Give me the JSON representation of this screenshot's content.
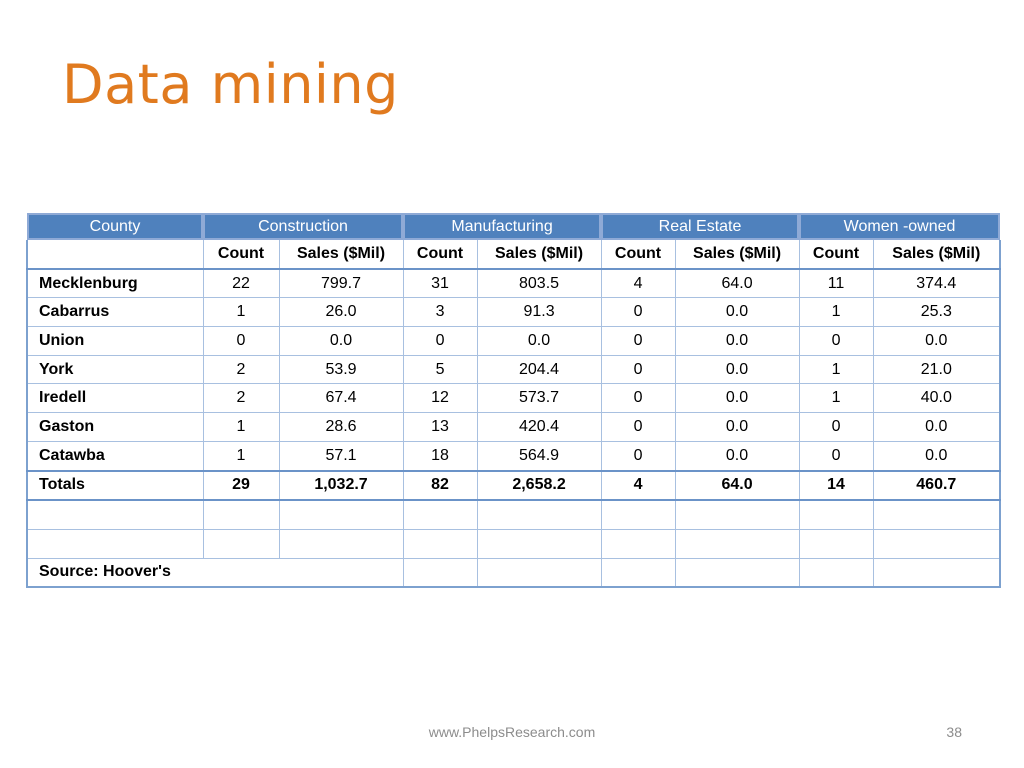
{
  "slide": {
    "title": "Data mining",
    "footer_url": "www.PhelpsResearch.com",
    "page_number": "38"
  },
  "colors": {
    "title": "#e07a1f",
    "header_bg": "#4f81bd",
    "header_text": "#ffffff",
    "grid": "#a8c0e0"
  },
  "table": {
    "group_headers": [
      "County",
      "Construction",
      "Manufacturing",
      "Real Estate",
      "Women -owned"
    ],
    "sub_headers": [
      "",
      "Count",
      "Sales ($Mil)",
      "Count",
      "Sales ($Mil)",
      "Count",
      "Sales ($Mil)",
      "Count",
      "Sales ($Mil)"
    ],
    "rows": [
      [
        "Mecklenburg",
        "22",
        "799.7",
        "31",
        "803.5",
        "4",
        "64.0",
        "11",
        "374.4"
      ],
      [
        "Cabarrus",
        "1",
        "26.0",
        "3",
        "91.3",
        "0",
        "0.0",
        "1",
        "25.3"
      ],
      [
        "Union",
        "0",
        "0.0",
        "0",
        "0.0",
        "0",
        "0.0",
        "0",
        "0.0"
      ],
      [
        "York",
        "2",
        "53.9",
        "5",
        "204.4",
        "0",
        "0.0",
        "1",
        "21.0"
      ],
      [
        "Iredell",
        "2",
        "67.4",
        "12",
        "573.7",
        "0",
        "0.0",
        "1",
        "40.0"
      ],
      [
        "Gaston",
        "1",
        "28.6",
        "13",
        "420.4",
        "0",
        "0.0",
        "0",
        "0.0"
      ],
      [
        "Catawba",
        "1",
        "57.1",
        "18",
        "564.9",
        "0",
        "0.0",
        "0",
        "0.0"
      ]
    ],
    "totals": [
      "Totals",
      "29",
      "1,032.7",
      "82",
      "2,658.2",
      "4",
      "64.0",
      "14",
      "460.7"
    ],
    "source": "Source: Hoover's"
  }
}
